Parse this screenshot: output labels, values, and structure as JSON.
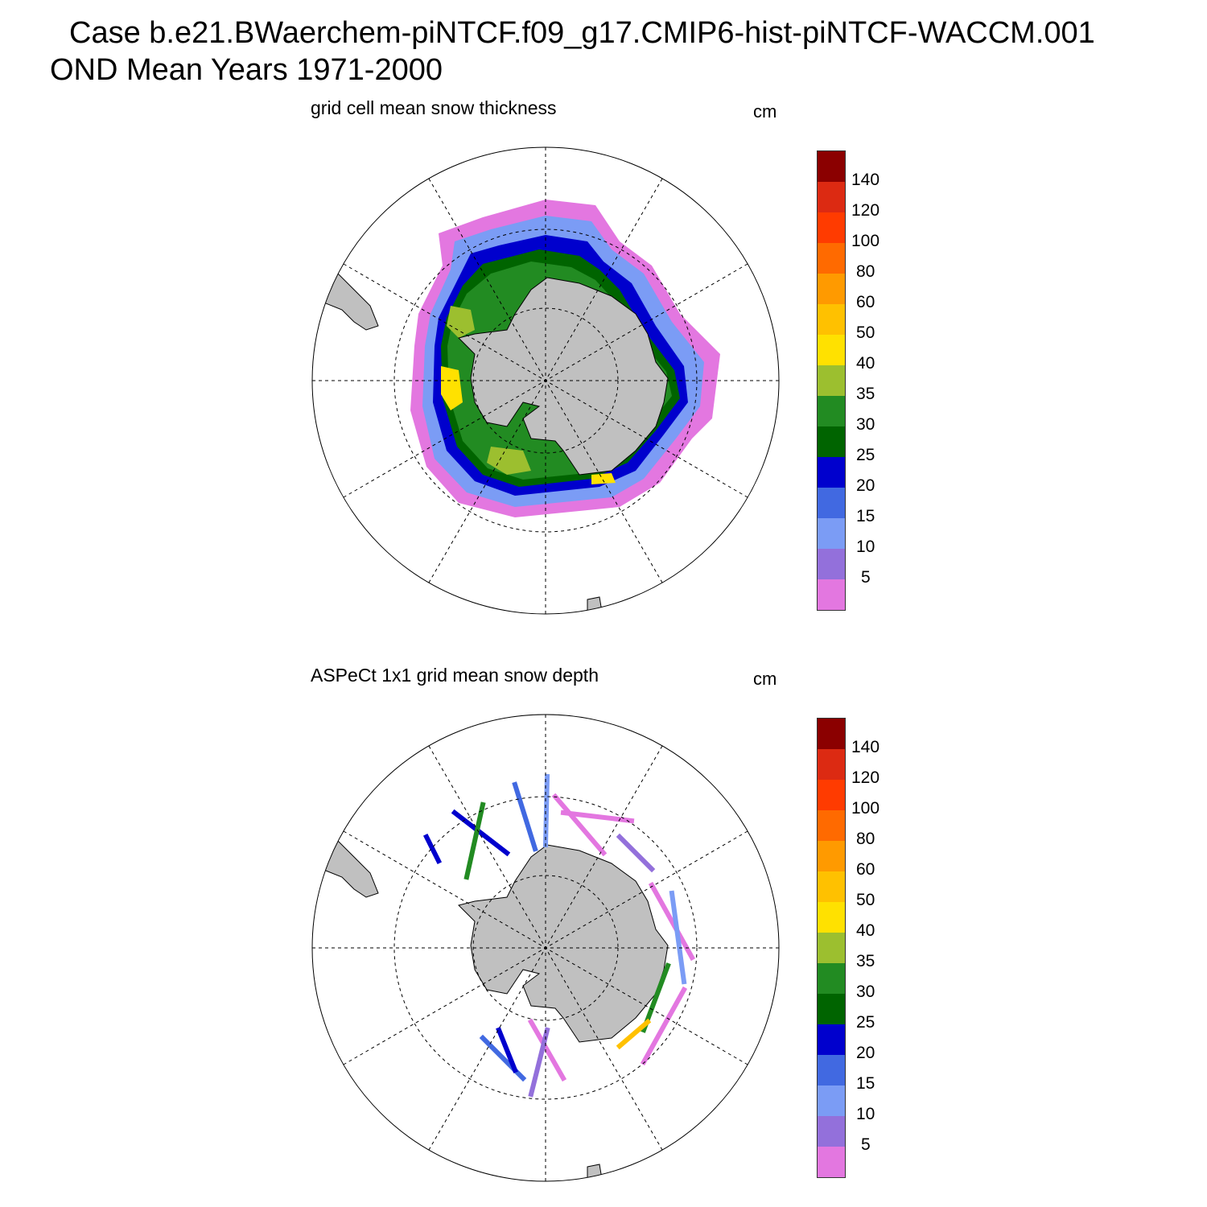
{
  "figure": {
    "title_line1": "Case b.e21.BWaerchem-piNTCF.f09_g17.CMIP6-hist-piNTCF-WACCM.001",
    "title_line2": "OND Mean   Years 1971-2000"
  },
  "colorbar": {
    "labels": [
      "140",
      "120",
      "100",
      "80",
      "60",
      "50",
      "40",
      "35",
      "30",
      "25",
      "20",
      "15",
      "10",
      "5"
    ],
    "colors": [
      "#8b0000",
      "#dc2a12",
      "#ff3b00",
      "#ff6a00",
      "#ff9a00",
      "#ffc100",
      "#ffe100",
      "#9cbf2f",
      "#228b22",
      "#006400",
      "#0000cd",
      "#4169e1",
      "#7b9cf5",
      "#9370db",
      "#e377e0"
    ]
  },
  "colors": {
    "land": "#c0c0c0",
    "grid": "#000000"
  },
  "panels": [
    {
      "title": "grid cell mean snow thickness",
      "unit": "cm"
    },
    {
      "title": "ASPeCt 1x1 grid mean snow depth",
      "unit": "cm"
    }
  ]
}
